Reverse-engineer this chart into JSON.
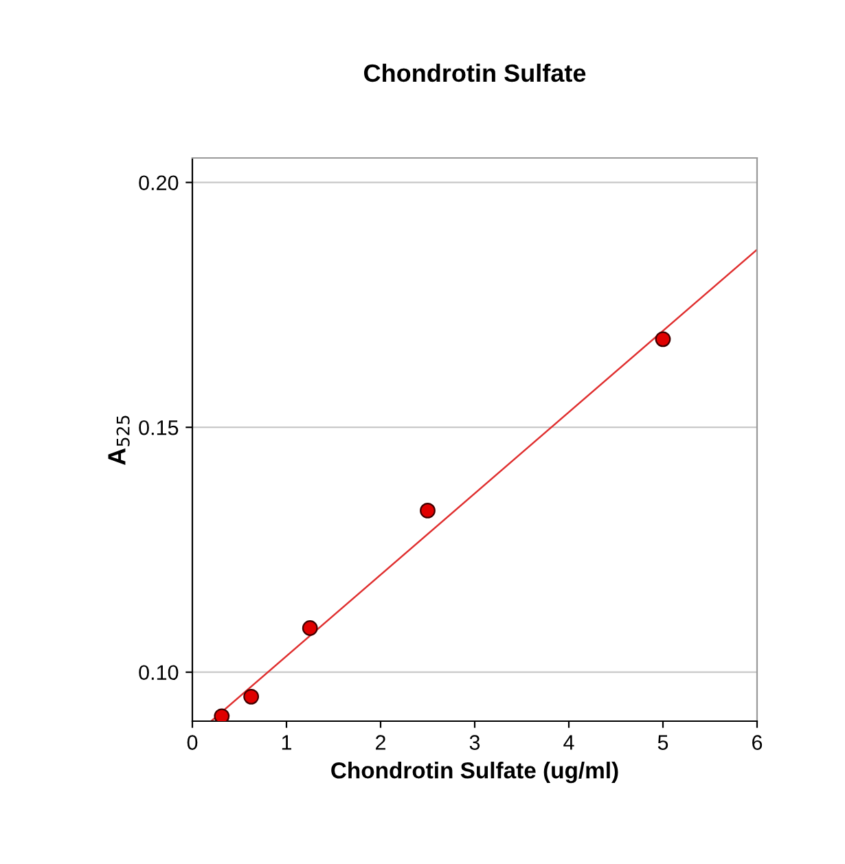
{
  "chart_data": {
    "type": "scatter",
    "title": "Chondrotin Sulfate",
    "xlabel": "Chondrotin Sulfate (ug/ml)",
    "ylabel": "A$_{525}$",
    "series": [
      {
        "color": "#e00000",
        "x": [
          0.3125,
          0.625,
          1.25,
          2.5,
          5
        ],
        "values": [
          0.091,
          0.095,
          0.109,
          0.133,
          0.168
        ],
        "marker": "circle"
      },
      {
        "type": "line",
        "color": "#e03030",
        "x": [
          0.2,
          6
        ],
        "values": [
          0.09,
          0.1863
        ],
        "marker": "none",
        "line_style": "solid"
      }
    ],
    "xlim": [
      0,
      6
    ],
    "ylim": [
      0.09,
      0.205
    ],
    "xticks": [
      0,
      1,
      2,
      3,
      4,
      5,
      6
    ],
    "yticks": [
      {
        "value": 0.1,
        "label": "0.10"
      },
      {
        "value": 0.15,
        "label": "0.15"
      },
      {
        "value": 0.2,
        "label": "0.20"
      }
    ],
    "grid": "y"
  }
}
